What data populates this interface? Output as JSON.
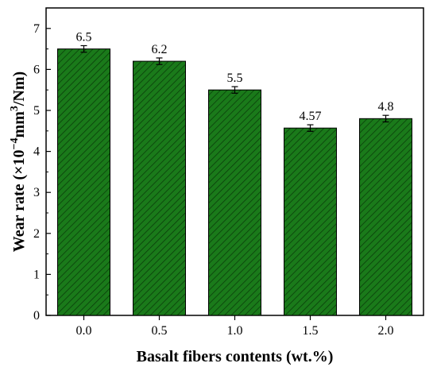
{
  "chart_data": {
    "type": "bar",
    "xlabel": "Basalt fibers contents (wt.%)",
    "ylabel": {
      "prefix": "Wear rate (×10",
      "exp1": "−4",
      "mid": "mm",
      "exp2": "3",
      "suffix": "/Nm)"
    },
    "categories": [
      "0.0",
      "0.5",
      "1.0",
      "1.5",
      "2.0"
    ],
    "values": [
      6.5,
      6.2,
      5.5,
      4.57,
      4.8
    ],
    "errors": [
      0.08,
      0.08,
      0.08,
      0.08,
      0.08
    ],
    "data_labels": [
      "6.5",
      "6.2",
      "5.5",
      "4.57",
      "4.8"
    ],
    "ylim": [
      0,
      7.5
    ],
    "yticks": [
      0,
      1,
      2,
      3,
      4,
      5,
      6,
      7
    ],
    "yticklabels": [
      "0",
      "1",
      "2",
      "3",
      "4",
      "5",
      "6",
      "7"
    ],
    "bar_color": "#1a7a1a",
    "hatch": "diagonal-lines",
    "grid": false,
    "legend": "none"
  }
}
